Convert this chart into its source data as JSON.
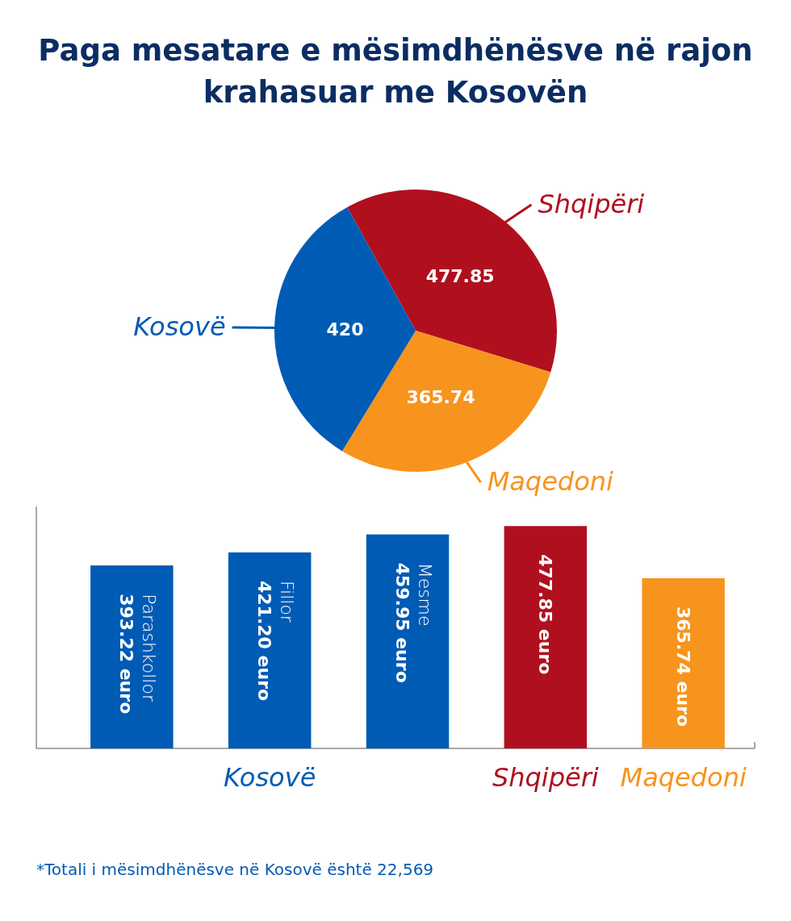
{
  "chart_data": [
    {
      "type": "pie",
      "title": "Paga mesatare e mësimdhënësve në rajon krahasuar me Kosovën",
      "categories": [
        "Shqipëri",
        "Maqedoni",
        "Kosovë"
      ],
      "values": [
        477.85,
        365.74,
        420
      ],
      "colors": [
        "#b0101e",
        "#f7941d",
        "#005bb5"
      ],
      "data_labels": true
    },
    {
      "type": "bar",
      "categories": [
        "Parashkollor",
        "Fillor",
        "Mesme",
        null,
        null
      ],
      "series": [
        {
          "name": "Kosovë",
          "color": "#005bb5",
          "values": [
            393.22,
            421.2,
            459.95,
            null,
            null
          ],
          "value_labels": [
            "393.22 euro",
            "421.20 euro",
            "459.95 euro",
            null,
            null
          ]
        },
        {
          "name": "Shqipëri",
          "color": "#b0101e",
          "values": [
            null,
            null,
            null,
            477.85,
            null
          ],
          "value_labels": [
            null,
            null,
            null,
            "477.85 euro",
            null
          ]
        },
        {
          "name": "Maqedoni",
          "color": "#f7941d",
          "values": [
            null,
            null,
            null,
            null,
            365.74
          ],
          "value_labels": [
            null,
            null,
            null,
            null,
            "365.74 euro"
          ]
        }
      ],
      "ylim": [
        0,
        520
      ],
      "annotations": [
        "*Totali i mësimdhënësve në Kosovë është 22,569"
      ]
    }
  ]
}
